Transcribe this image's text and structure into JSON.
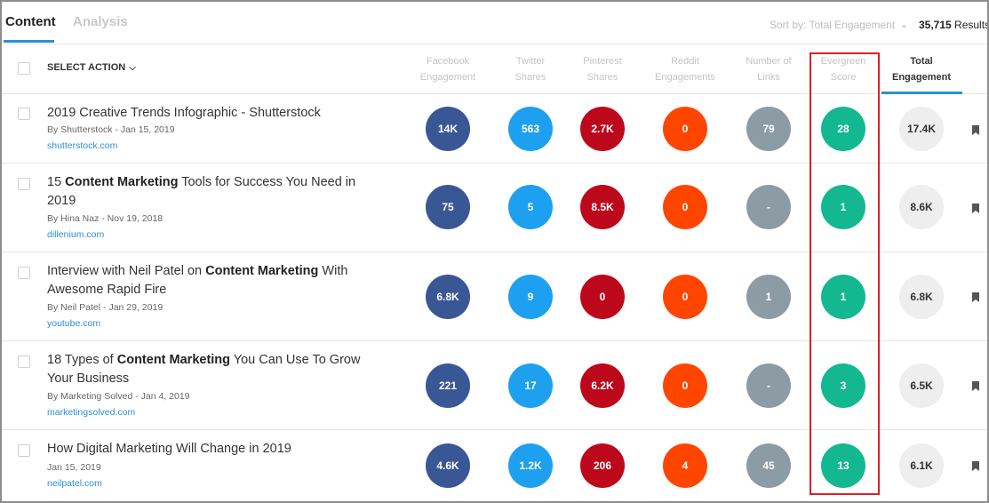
{
  "tabs": [
    {
      "label": "Content"
    },
    {
      "label": "Analysis"
    }
  ],
  "sort": {
    "label": "Sort by: Total Engagement"
  },
  "results": {
    "count": "35,715",
    "suffix": "Results"
  },
  "header": {
    "select_action": "SELECT ACTION",
    "columns": [
      {
        "line1": "Facebook",
        "line2": "Engagement"
      },
      {
        "line1": "Twitter",
        "line2": "Shares"
      },
      {
        "line1": "Pinterest",
        "line2": "Shares"
      },
      {
        "line1": "Reddit",
        "line2": "Engagements"
      },
      {
        "line1": "Number of",
        "line2": "Links"
      },
      {
        "line1": "Evergreen",
        "line2": "Score"
      },
      {
        "line1": "Total",
        "line2": "Engagement"
      }
    ]
  },
  "rows": [
    {
      "t1": "2019 Creative Trends Infographic - Shutterstock",
      "t1b": "",
      "t1c": "",
      "t2": "",
      "meta": "By Shutterstock - Jan 15, 2019",
      "domain": "shutterstock.com",
      "fb": "14K",
      "tw": "563",
      "pin": "2.7K",
      "rd": "0",
      "ln": "79",
      "ev": "28",
      "tot": "17.4K"
    },
    {
      "t1": "15 ",
      "t1b": "Content Marketing",
      "t1c": " Tools for Success You Need in",
      "t2": "2019",
      "meta": "By Hina Naz - Nov 19, 2018",
      "domain": "dillenium.com",
      "fb": "75",
      "tw": "5",
      "pin": "8.5K",
      "rd": "0",
      "ln": "-",
      "ev": "1",
      "tot": "8.6K"
    },
    {
      "t1": "Interview with Neil Patel on ",
      "t1b": "Content Marketing",
      "t1c": " With",
      "t2": "Awesome Rapid Fire",
      "meta": "By Neil Patel - Jan 29, 2019",
      "domain": "youtube.com",
      "fb": "6.8K",
      "tw": "9",
      "pin": "0",
      "rd": "0",
      "ln": "1",
      "ev": "1",
      "tot": "6.8K"
    },
    {
      "t1": "18 Types of ",
      "t1b": "Content Marketing",
      "t1c": " You Can Use To Grow",
      "t2": "Your Business",
      "meta": "By Marketing Solved - Jan 4, 2019",
      "domain": "marketingsolved.com",
      "fb": "221",
      "tw": "17",
      "pin": "6.2K",
      "rd": "0",
      "ln": "-",
      "ev": "3",
      "tot": "6.5K"
    },
    {
      "t1": "How Digital Marketing Will Change in 2019",
      "t1b": "",
      "t1c": "",
      "t2": "",
      "meta": "Jan 15, 2019",
      "domain": "neilpatel.com",
      "fb": "4.6K",
      "tw": "1.2K",
      "pin": "206",
      "rd": "4",
      "ln": "45",
      "ev": "13",
      "tot": "6.1K"
    }
  ],
  "colors": {
    "facebook": "#3a5795",
    "twitter": "#1ea0f1",
    "pinterest": "#bd081c",
    "reddit": "#ff4500",
    "links": "#8d9ba4",
    "evergreen": "#13b890",
    "highlight": "#e0202a",
    "accent": "#2d8fd5"
  },
  "icons": {
    "bookmark": "bookmark-icon",
    "chevron": "chevron-down-icon"
  }
}
